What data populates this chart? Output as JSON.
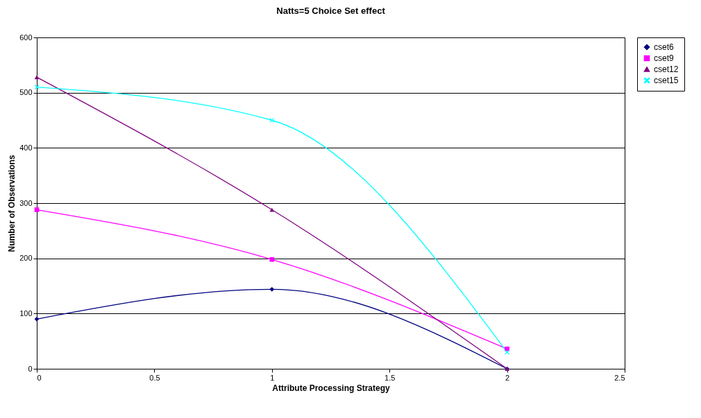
{
  "chart_data": {
    "type": "line",
    "title": "Natts=5 Choice Set effect",
    "xlabel": "Attribute Processing Strategy",
    "ylabel": "Number of Observations",
    "x": [
      0,
      1,
      2
    ],
    "xlim": [
      0,
      2.5
    ],
    "xticks": [
      0,
      0.5,
      1,
      1.5,
      2,
      2.5
    ],
    "ylim": [
      0,
      600
    ],
    "yticks": [
      0,
      100,
      200,
      300,
      400,
      500,
      600
    ],
    "grid": "y",
    "legend": "right",
    "series": [
      {
        "name": "cset6",
        "color": "#000080",
        "marker": "diamond",
        "values": [
          90,
          144,
          0
        ]
      },
      {
        "name": "cset9",
        "color": "#ff00ff",
        "marker": "square",
        "values": [
          288,
          198,
          36
        ]
      },
      {
        "name": "cset12",
        "color": "#800080",
        "marker": "triangle",
        "values": [
          528,
          288,
          0
        ]
      },
      {
        "name": "cset15",
        "color": "#00ffff",
        "marker": "cross",
        "values": [
          510,
          450,
          30
        ]
      }
    ]
  }
}
